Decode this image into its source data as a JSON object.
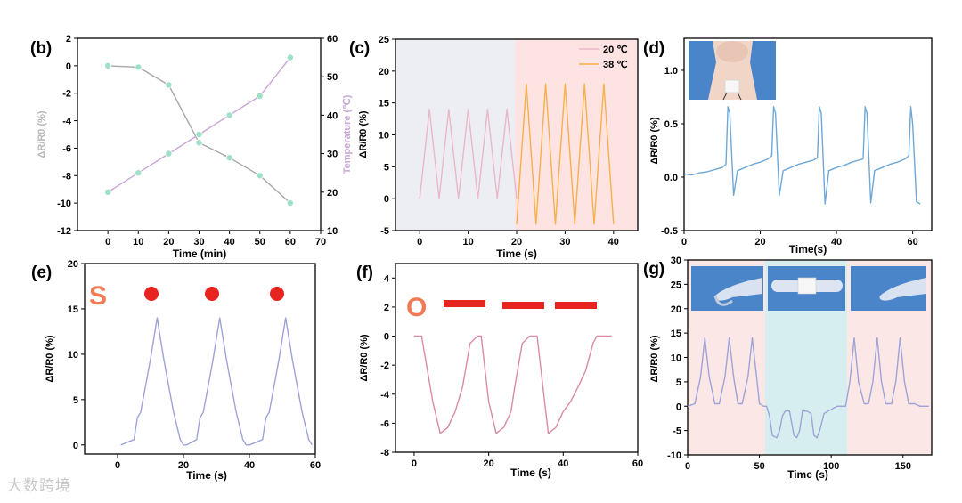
{
  "watermark": "大数跨境",
  "colors": {
    "gray_line": "#a8a8a8",
    "purple_line": "#c9a6d6",
    "marker": "#9ee0c8",
    "pink_line": "#e9b8c9",
    "orange_line": "#f5b24a",
    "blue_line": "#6fa8d6",
    "lavender_line": "#9ea3d8",
    "rose_line": "#d98aa6",
    "red_mark": "#e8241f",
    "letter": "#f07a55",
    "bg_blue": "#eceef4",
    "bg_pink": "#fde3e1",
    "bg_cyan": "#d7eef0",
    "bg_pink_light": "#fbe7e6",
    "photo_blue": "#4b85c9",
    "skin": "#f1d6c8"
  },
  "chart_data": [
    {
      "id": "b",
      "label": "(b)",
      "type": "line",
      "xlabel": "Time (min)",
      "ylabel": "ΔR/R0 (%)",
      "y2label": "Temperature (℃)",
      "xlim": [
        -10,
        70
      ],
      "ylim": [
        -12,
        2
      ],
      "y2lim": [
        10,
        60
      ],
      "xticks": [
        "0",
        "10",
        "20",
        "30",
        "40",
        "50",
        "60",
        "70"
      ],
      "yticks": [
        "2",
        "0",
        "-2",
        "-4",
        "-6",
        "-8",
        "-10",
        "-12"
      ],
      "y2ticks": [
        "60",
        "50",
        "40",
        "30",
        "20",
        "10"
      ],
      "series": [
        {
          "name": "ΔR/R0",
          "axis": "left",
          "x": [
            0,
            10,
            20,
            30,
            40,
            50,
            60
          ],
          "y": [
            0,
            -0.1,
            -1.4,
            -5.6,
            -6.7,
            -8.0,
            -10.0
          ]
        },
        {
          "name": "Temperature",
          "axis": "right",
          "x": [
            0,
            10,
            20,
            30,
            40,
            50,
            60
          ],
          "y": [
            20,
            25,
            30,
            35,
            40,
            45,
            55
          ]
        }
      ]
    },
    {
      "id": "c",
      "label": "(c)",
      "type": "line",
      "xlabel": "Time (s)",
      "ylabel": "ΔR/R0 (%)",
      "xlim": [
        -5,
        45
      ],
      "ylim": [
        -5,
        25
      ],
      "xticks": [
        "0",
        "10",
        "20",
        "30",
        "40"
      ],
      "yticks": [
        "25",
        "20",
        "15",
        "10",
        "5",
        "0",
        "-5"
      ],
      "legend": [
        "20 ℃",
        "38 ℃"
      ],
      "series": [
        {
          "name": "20 ℃",
          "x": [
            0,
            2,
            4,
            6,
            8,
            10,
            12,
            14,
            16,
            18,
            20
          ],
          "y": [
            0,
            14,
            0,
            14,
            0,
            14,
            0,
            14,
            0,
            14,
            0
          ]
        },
        {
          "name": "38 ℃",
          "x": [
            20,
            22,
            24,
            26,
            28,
            30,
            32,
            34,
            36,
            38,
            40
          ],
          "y": [
            -4,
            18,
            -4,
            18,
            -4,
            18,
            -4,
            18,
            -4,
            18,
            -4
          ]
        }
      ]
    },
    {
      "id": "d",
      "label": "(d)",
      "type": "line",
      "xlabel": "Time(s)",
      "ylabel": "ΔR/R0 (%)",
      "xlim": [
        0,
        65
      ],
      "ylim": [
        -0.5,
        1.3
      ],
      "xticks": [
        "0",
        "20",
        "40",
        "60"
      ],
      "yticks": [
        "1.0",
        "0.5",
        "0.0",
        "-0.5"
      ],
      "series": [
        {
          "name": "neck",
          "x": [
            0,
            2,
            4,
            6,
            8,
            10,
            11,
            11.5,
            12,
            13,
            14,
            16,
            18,
            20,
            22,
            23,
            23.5,
            24,
            25,
            26,
            28,
            30,
            32,
            34,
            35,
            35.5,
            36,
            37,
            38,
            40,
            42,
            44,
            46,
            47,
            47.5,
            48,
            49,
            50,
            52,
            54,
            56,
            58,
            59,
            59.5,
            60,
            61,
            62
          ],
          "y": [
            0.03,
            0.02,
            0.04,
            0.05,
            0.07,
            0.09,
            0.12,
            0.66,
            0.6,
            -0.17,
            0.06,
            0.09,
            0.12,
            0.14,
            0.17,
            0.2,
            0.66,
            0.6,
            -0.17,
            0.06,
            0.09,
            0.12,
            0.14,
            0.16,
            0.18,
            0.66,
            0.6,
            -0.25,
            0.06,
            0.09,
            0.11,
            0.14,
            0.16,
            0.17,
            0.66,
            0.6,
            -0.24,
            0.06,
            0.09,
            0.12,
            0.14,
            0.17,
            0.2,
            0.66,
            0.5,
            -0.23,
            -0.25
          ]
        }
      ]
    },
    {
      "id": "e",
      "label": "(e)",
      "type": "line",
      "xlabel": "Time (s)",
      "ylabel": "ΔR/R0 (%)",
      "xlim": [
        -10,
        60
      ],
      "ylim": [
        -1,
        20
      ],
      "xticks": [
        "0",
        "20",
        "40",
        "60"
      ],
      "yticks": [
        "20",
        "15",
        "10",
        "5",
        "0"
      ],
      "letter": "S",
      "series": [
        {
          "name": "S",
          "x": [
            1,
            5,
            6,
            7,
            9,
            10,
            12,
            14,
            15,
            17,
            19,
            20,
            21,
            24,
            25,
            26,
            28,
            29,
            31,
            33,
            34,
            36,
            38,
            39,
            40,
            44,
            45,
            46,
            48,
            49,
            51,
            53,
            54,
            56,
            58,
            59
          ],
          "y": [
            0,
            0.6,
            3,
            3.6,
            7.5,
            9.5,
            14,
            9.5,
            7.5,
            3.6,
            0.6,
            0,
            0,
            0.6,
            3,
            3.6,
            7.5,
            9.5,
            14,
            9.5,
            7.5,
            3.6,
            0.6,
            0,
            0,
            0.6,
            3,
            3.6,
            7.5,
            9.5,
            14,
            9.5,
            7.5,
            3.6,
            0.6,
            0
          ]
        }
      ]
    },
    {
      "id": "f",
      "label": "(f)",
      "type": "line",
      "xlabel": "Time (s)",
      "ylabel": "ΔR/R0 (%)",
      "xlim": [
        -5,
        60
      ],
      "ylim": [
        -8,
        5
      ],
      "xticks": [
        "0",
        "20",
        "40",
        "60"
      ],
      "yticks": [
        "4",
        "2",
        "0",
        "-2",
        "-4",
        "-6",
        "-8"
      ],
      "letter": "O",
      "series": [
        {
          "name": "O",
          "x": [
            0,
            2,
            5,
            7,
            9,
            11,
            13,
            15,
            17,
            18,
            20,
            22,
            24,
            26,
            27,
            29,
            31,
            33,
            35,
            36,
            38,
            40,
            42,
            44,
            46,
            48,
            49,
            51,
            53
          ],
          "y": [
            0,
            0,
            -4.5,
            -6.7,
            -6.3,
            -5.2,
            -3.5,
            -0.5,
            0,
            0,
            -4.5,
            -6.7,
            -6.3,
            -5.2,
            -3.5,
            -0.5,
            0,
            0,
            -4.5,
            -6.7,
            -6.3,
            -5.2,
            -4.5,
            -3.5,
            -2.4,
            -0.5,
            0,
            0,
            0
          ]
        }
      ]
    },
    {
      "id": "g",
      "label": "(g)",
      "type": "line",
      "xlabel": "Time (s)",
      "ylabel": "ΔR/R0 (%)",
      "xlim": [
        0,
        170
      ],
      "ylim": [
        -10,
        30
      ],
      "xticks": [
        "0",
        "50",
        "100",
        "150"
      ],
      "yticks": [
        "30",
        "25",
        "20",
        "15",
        "10",
        "5",
        "0",
        "-5",
        "-10"
      ],
      "series": [
        {
          "name": "finger",
          "x": [
            0,
            5,
            9,
            12,
            15,
            19,
            22,
            26,
            29,
            32,
            35,
            38,
            42,
            45,
            48,
            50,
            53,
            55,
            57,
            59,
            62,
            64,
            66,
            68,
            71,
            74,
            76,
            78,
            80,
            83,
            86,
            88,
            90,
            92,
            95,
            98,
            101,
            104,
            107,
            110,
            113,
            116,
            119,
            123,
            126,
            129,
            132,
            135,
            138,
            142,
            145,
            148,
            151,
            154,
            158,
            162,
            165,
            168
          ],
          "y": [
            0,
            0.5,
            6,
            14,
            6,
            0.5,
            0.5,
            6,
            14,
            6,
            0.5,
            0.5,
            6,
            14,
            6,
            0.5,
            0,
            0,
            -2,
            -6,
            -6.5,
            -5,
            -2,
            -1,
            -1,
            -6,
            -6.5,
            -5,
            -1,
            -1,
            -1.5,
            -6,
            -6.5,
            -5,
            -1.5,
            -1,
            -0.5,
            0,
            0,
            0,
            5,
            14,
            5,
            0.5,
            0.5,
            5,
            14,
            5,
            0.5,
            0.5,
            5,
            14,
            5,
            0.5,
            0.5,
            0,
            0,
            0
          ]
        }
      ]
    }
  ]
}
